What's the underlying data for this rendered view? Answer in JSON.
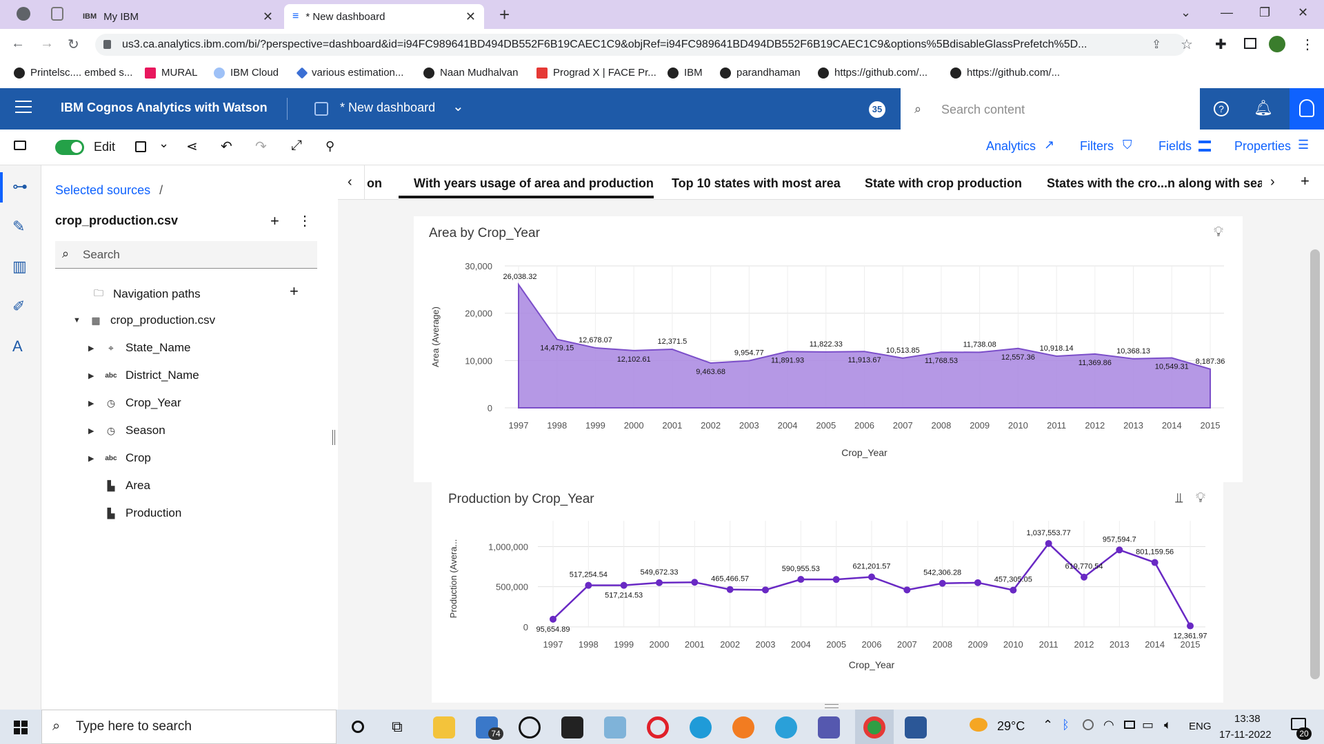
{
  "browser": {
    "tabs": [
      {
        "label": ""
      },
      {
        "label": "My IBM"
      },
      {
        "label": "* New dashboard"
      }
    ],
    "url": "us3.ca.analytics.ibm.com/bi/?perspective=dashboard&id=i94FC989641BD494DB552F6B19CAEC1C9&objRef=i94FC989641BD494DB552F6B19CAEC1C9&options%5BdisableGlassPrefetch%5D...",
    "bookmarks": [
      "Printelsc.... embed s...",
      "MURAL",
      "IBM Cloud",
      "various estimation...",
      "Naan Mudhalvan",
      "Prograd X | FACE Pr...",
      "IBM",
      "parandhaman",
      "https://github.com/...",
      "https://github.com/..."
    ]
  },
  "app": {
    "title": "IBM Cognos Analytics with Watson",
    "dashboard_name": "* New dashboard",
    "notification_count": "35",
    "search_placeholder": "Search content"
  },
  "toolbar": {
    "edit_label": "Edit",
    "analytics": "Analytics",
    "filters": "Filters",
    "fields": "Fields",
    "properties": "Properties"
  },
  "source_panel": {
    "breadcrumb": "Selected sources",
    "breadcrumb_sep": "/",
    "source_name": "crop_production.csv",
    "search_placeholder": "Search",
    "navigation_paths": "Navigation paths",
    "table_name": "crop_production.csv",
    "fields": [
      {
        "label": "State_Name",
        "icon": "location-icon",
        "expandable": true
      },
      {
        "label": "District_Name",
        "icon": "abc-icon",
        "expandable": true
      },
      {
        "label": "Crop_Year",
        "icon": "clock-icon",
        "expandable": true
      },
      {
        "label": "Season",
        "icon": "clock-icon",
        "expandable": true
      },
      {
        "label": "Crop",
        "icon": "abc-icon",
        "expandable": true
      },
      {
        "label": "Area",
        "icon": "measure-icon",
        "expandable": false
      },
      {
        "label": "Production",
        "icon": "measure-icon",
        "expandable": false
      }
    ]
  },
  "dashboard_tabs": [
    "on",
    "With years usage of area and production",
    "Top 10 states with most area",
    "State with crop production",
    "States with the cro...n along with seas"
  ],
  "chart_data": [
    {
      "type": "area",
      "title": "Area by Crop_Year",
      "xlabel": "Crop_Year",
      "ylabel": "Area (Average)",
      "ylim": [
        0,
        30000
      ],
      "yticks": [
        "0",
        "10,000",
        "20,000",
        "30,000"
      ],
      "color": "#a886e0",
      "x": [
        "1997",
        "1998",
        "1999",
        "2000",
        "2001",
        "2002",
        "2003",
        "2004",
        "2005",
        "2006",
        "2007",
        "2008",
        "2009",
        "2010",
        "2011",
        "2012",
        "2013",
        "2014",
        "2015"
      ],
      "values": [
        26038.32,
        14479.15,
        12678.07,
        12102.61,
        12371.5,
        9463.68,
        9954.77,
        11891.93,
        11822.33,
        11913.67,
        10513.85,
        11768.53,
        11738.08,
        12557.36,
        10918.14,
        11369.86,
        10368.13,
        10549.31,
        8187.36
      ],
      "labels": [
        "26,038.32",
        "14,479.15",
        "12,678.07",
        "12,102.61",
        "12,371.5",
        "9,463.68",
        "9,954.77",
        "11,891.93",
        "11,822.33",
        "11,913.67",
        "10,513.85",
        "11,768.53",
        "11,738.08",
        "12,557.36",
        "10,918.14",
        "11,369.86",
        "10,368.13",
        "10,549.31",
        "8,187.36"
      ]
    },
    {
      "type": "line",
      "title": "Production by Crop_Year",
      "xlabel": "Crop_Year",
      "ylabel": "Production (Avera...",
      "ylim": [
        0,
        1200000
      ],
      "yticks": [
        "0",
        "500,000",
        "1,000,000"
      ],
      "color": "#6929c4",
      "x": [
        "1997",
        "1998",
        "1999",
        "2000",
        "2001",
        "2002",
        "2003",
        "2004",
        "2005",
        "2006",
        "2007",
        "2008",
        "2009",
        "2010",
        "2011",
        "2012",
        "2013",
        "2014",
        "2015"
      ],
      "values": [
        95654.89,
        517254.54,
        517214.53,
        549672.33,
        555000,
        465466.57,
        460000,
        590955.53,
        590000,
        621201.57,
        460000,
        542306.28,
        550000,
        457305.05,
        1037553.77,
        619770.54,
        957594.7,
        801159.56,
        12361.97
      ],
      "labels": [
        "95,654.89",
        "517,254.54",
        "517,214.53",
        "549,672.33",
        "",
        "465,466.57",
        "",
        "590,955.53",
        "",
        "621,201.57",
        "",
        "542,306.28",
        "",
        "457,305.05",
        "1,037,553.77",
        "619,770.54",
        "957,594.7",
        "801,159.56",
        "12,361.97"
      ]
    }
  ],
  "taskbar": {
    "search_placeholder": "Type here to search",
    "mail_badge": "74",
    "weather": "29°C",
    "language": "ENG",
    "time": "13:38",
    "date": "17-11-2022",
    "notif_badge": "20"
  }
}
